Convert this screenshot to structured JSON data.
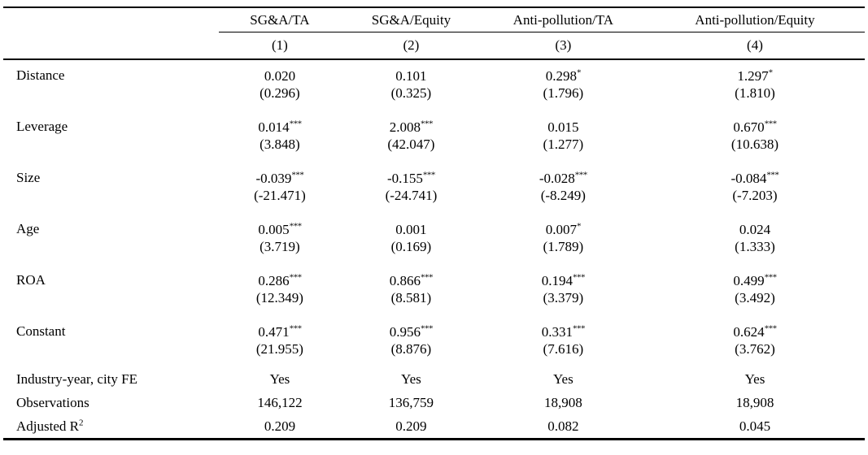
{
  "table": {
    "col_groups": [
      "SG&A/TA",
      "SG&A/Equity",
      "Anti-pollution/TA",
      "Anti-pollution/Equity"
    ],
    "col_numbers": [
      "(1)",
      "(2)",
      "(3)",
      "(4)"
    ],
    "coef_rows": [
      {
        "label": "Distance",
        "cells": [
          {
            "est": "0.020",
            "stars": "",
            "t": "(0.296)"
          },
          {
            "est": "0.101",
            "stars": "",
            "t": "(0.325)"
          },
          {
            "est": "0.298",
            "stars": "*",
            "t": "(1.796)"
          },
          {
            "est": "1.297",
            "stars": "*",
            "t": "(1.810)"
          }
        ]
      },
      {
        "label": "Leverage",
        "cells": [
          {
            "est": "0.014",
            "stars": "***",
            "t": "(3.848)"
          },
          {
            "est": "2.008",
            "stars": "***",
            "t": "(42.047)"
          },
          {
            "est": "0.015",
            "stars": "",
            "t": "(1.277)"
          },
          {
            "est": "0.670",
            "stars": "***",
            "t": "(10.638)"
          }
        ]
      },
      {
        "label": "Size",
        "cells": [
          {
            "est": "-0.039",
            "stars": "***",
            "t": "(-21.471)"
          },
          {
            "est": "-0.155",
            "stars": "***",
            "t": "(-24.741)"
          },
          {
            "est": "-0.028",
            "stars": "***",
            "t": "(-8.249)"
          },
          {
            "est": "-0.084",
            "stars": "***",
            "t": "(-7.203)"
          }
        ]
      },
      {
        "label": "Age",
        "cells": [
          {
            "est": "0.005",
            "stars": "***",
            "t": "(3.719)"
          },
          {
            "est": "0.001",
            "stars": "",
            "t": "(0.169)"
          },
          {
            "est": "0.007",
            "stars": "*",
            "t": "(1.789)"
          },
          {
            "est": "0.024",
            "stars": "",
            "t": "(1.333)"
          }
        ]
      },
      {
        "label": "ROA",
        "cells": [
          {
            "est": "0.286",
            "stars": "***",
            "t": "(12.349)"
          },
          {
            "est": "0.866",
            "stars": "***",
            "t": "(8.581)"
          },
          {
            "est": "0.194",
            "stars": "***",
            "t": "(3.379)"
          },
          {
            "est": "0.499",
            "stars": "***",
            "t": "(3.492)"
          }
        ]
      },
      {
        "label": "Constant",
        "cells": [
          {
            "est": "0.471",
            "stars": "***",
            "t": "(21.955)"
          },
          {
            "est": "0.956",
            "stars": "***",
            "t": "(8.876)"
          },
          {
            "est": "0.331",
            "stars": "***",
            "t": "(7.616)"
          },
          {
            "est": "0.624",
            "stars": "***",
            "t": "(3.762)"
          }
        ]
      }
    ],
    "info_rows": [
      {
        "label": "Industry-year, city FE",
        "values": [
          "Yes",
          "Yes",
          "Yes",
          "Yes"
        ]
      },
      {
        "label": "Observations",
        "values": [
          "146,122",
          "136,759",
          "18,908",
          "18,908"
        ]
      },
      {
        "label": "Adjusted R",
        "label_sup": "2",
        "values": [
          "0.209",
          "0.209",
          "0.082",
          "0.045"
        ]
      }
    ]
  }
}
